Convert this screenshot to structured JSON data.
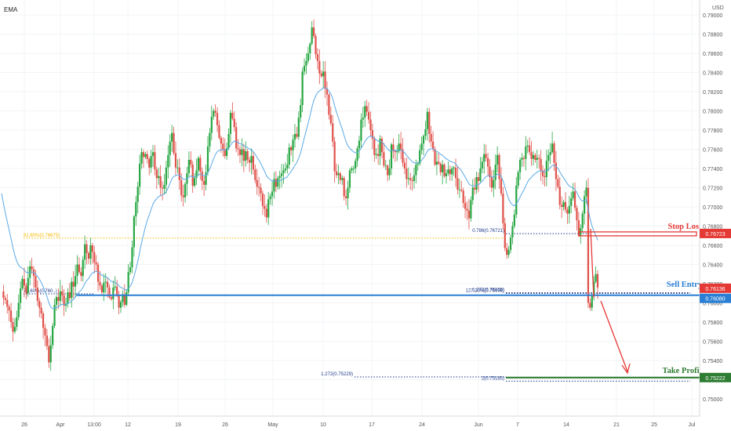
{
  "chart_data": {
    "type": "candlestick",
    "indicator_label": "EMA",
    "currency_label": "USD",
    "y_ticks": [
      "0.79000",
      "0.78800",
      "0.78600",
      "0.78400",
      "0.78200",
      "0.78000",
      "0.77800",
      "0.77600",
      "0.77400",
      "0.77200",
      "0.77000",
      "0.76800",
      "0.76600",
      "0.76400",
      "0.76200",
      "0.76000",
      "0.75800",
      "0.75600",
      "0.75400",
      "0.75200",
      "0.75000"
    ],
    "x_ticks": [
      "26",
      "Apr",
      "13:00",
      "12",
      "19",
      "26",
      "May",
      "10",
      "17",
      "24",
      "Jun",
      "7",
      "14",
      "21",
      "25",
      "Jul"
    ],
    "ylim": [
      0.7487,
      0.7911
    ],
    "levels": {
      "stop_loss": {
        "label": "Stop Loss",
        "value": 0.76723,
        "tag": "0.76723",
        "color": "#e53935"
      },
      "sell_entry": {
        "label": "Sell Entry",
        "values": [
          0.76136,
          0.7608
        ],
        "tags": [
          "0.76136",
          "0.76080"
        ],
        "color": "#2a7fd4"
      },
      "take_profit": {
        "label": "Take Profit",
        "value": 0.75222,
        "tag": "0.75222",
        "color": "#2e7d32"
      }
    },
    "fib_annotations": [
      {
        "text": "61.80%(0.76675)",
        "value": 0.76675
      },
      {
        "text": "0.786(0.76721)",
        "value": 0.76721
      },
      {
        "text": "78.60%(0.760..)",
        "value": 0.76094
      },
      {
        "text": "1.272(0.76106)",
        "value": 0.76106
      },
      {
        "text": "127.20%(0.76098)",
        "value": 0.76098
      },
      {
        "text": "1.272(0.75229)",
        "value": 0.75229
      },
      {
        "text": "2(0.75185)",
        "value": 0.75185
      }
    ],
    "candle_colors": {
      "up": "#26a641",
      "down": "#e0514a"
    },
    "ema_color": "#5aa9e6",
    "path_prices": [
      0.7612,
      0.7605,
      0.7603,
      0.7596,
      0.7592,
      0.758,
      0.757,
      0.7575,
      0.7585,
      0.76,
      0.7615,
      0.7625,
      0.7618,
      0.761,
      0.7626,
      0.7638,
      0.7635,
      0.7628,
      0.7616,
      0.7602,
      0.7595,
      0.7589,
      0.7574,
      0.7566,
      0.7555,
      0.7538,
      0.7556,
      0.7576,
      0.7598,
      0.7606,
      0.7602,
      0.7612,
      0.7608,
      0.7597,
      0.7599,
      0.7611,
      0.7605,
      0.7622,
      0.7617,
      0.7628,
      0.764,
      0.7632,
      0.7628,
      0.7645,
      0.7661,
      0.7652,
      0.7646,
      0.766,
      0.7653,
      0.7642,
      0.764,
      0.7622,
      0.7618,
      0.7611,
      0.7621,
      0.7622,
      0.7616,
      0.7606,
      0.7604,
      0.7616,
      0.7617,
      0.7608,
      0.7595,
      0.7601,
      0.7609,
      0.7598,
      0.7611,
      0.7632,
      0.7637,
      0.7658,
      0.769,
      0.7705,
      0.7721,
      0.7745,
      0.7757,
      0.7752,
      0.7755,
      0.775,
      0.7741,
      0.7753,
      0.7757,
      0.7739,
      0.773,
      0.7732,
      0.772,
      0.7719,
      0.7723,
      0.7741,
      0.7754,
      0.7768,
      0.7777,
      0.7756,
      0.7741,
      0.7741,
      0.7728,
      0.7712,
      0.771,
      0.7724,
      0.7735,
      0.7749,
      0.7744,
      0.7722,
      0.773,
      0.7738,
      0.7751,
      0.7737,
      0.7727,
      0.7723,
      0.7736,
      0.7763,
      0.7777,
      0.7794,
      0.78,
      0.7798,
      0.7785,
      0.7772,
      0.7766,
      0.776,
      0.7753,
      0.7761,
      0.7776,
      0.7798,
      0.7792,
      0.7783,
      0.7761,
      0.776,
      0.7754,
      0.776,
      0.7748,
      0.7758,
      0.7749,
      0.7746,
      0.7753,
      0.7739,
      0.7728,
      0.7721,
      0.772,
      0.7714,
      0.7701,
      0.7698,
      0.7689,
      0.7708,
      0.7711,
      0.7716,
      0.7729,
      0.7721,
      0.773,
      0.7732,
      0.7735,
      0.7738,
      0.774,
      0.7744,
      0.7762,
      0.7759,
      0.777,
      0.7776,
      0.7773,
      0.7793,
      0.7806,
      0.7841,
      0.7847,
      0.7852,
      0.786,
      0.787,
      0.7887,
      0.7878,
      0.7859,
      0.7852,
      0.7839,
      0.7836,
      0.7841,
      0.7823,
      0.7817,
      0.7796,
      0.7787,
      0.7768,
      0.7737,
      0.7733,
      0.7735,
      0.7728,
      0.773,
      0.7711,
      0.7709,
      0.772,
      0.7738,
      0.774,
      0.774,
      0.7748,
      0.7761,
      0.7769,
      0.7791,
      0.7793,
      0.7805,
      0.7799,
      0.7791,
      0.778,
      0.7771,
      0.7754,
      0.7755,
      0.7753,
      0.7771,
      0.7757,
      0.7743,
      0.7743,
      0.7733,
      0.774,
      0.7765,
      0.7758,
      0.7757,
      0.7758,
      0.7766,
      0.776,
      0.7746,
      0.774,
      0.7729,
      0.773,
      0.7728,
      0.7727,
      0.7733,
      0.7744,
      0.7745,
      0.7759,
      0.7766,
      0.7774,
      0.7781,
      0.7799,
      0.7776,
      0.7768,
      0.776,
      0.7744,
      0.7747,
      0.7745,
      0.7736,
      0.7744,
      0.7732,
      0.7735,
      0.7739,
      0.7734,
      0.774,
      0.7741,
      0.773,
      0.7718,
      0.7718,
      0.7717,
      0.7704,
      0.7698,
      0.7696,
      0.7688,
      0.7707,
      0.772,
      0.7718,
      0.7731,
      0.7727,
      0.774,
      0.7747,
      0.7755,
      0.7751,
      0.7742,
      0.7731,
      0.772,
      0.7728,
      0.7744,
      0.7754,
      0.7729,
      0.7714,
      0.7683,
      0.7657,
      0.765,
      0.7655,
      0.7668,
      0.768,
      0.7692,
      0.7722,
      0.7736,
      0.7749,
      0.7751,
      0.775,
      0.7763,
      0.7764,
      0.7757,
      0.775,
      0.7754,
      0.7749,
      0.7751,
      0.775,
      0.7738,
      0.7732,
      0.7731,
      0.7748,
      0.7754,
      0.7757,
      0.7766,
      0.7746,
      0.7729,
      0.7721,
      0.7702,
      0.77,
      0.7705,
      0.7697,
      0.7693,
      0.7701,
      0.7709,
      0.7716,
      0.7699,
      0.7686,
      0.767,
      0.7678,
      0.7693,
      0.7711,
      0.772,
      0.76,
      0.7595,
      0.7607,
      0.7622,
      0.763,
      0.7616
    ]
  },
  "annotation_arrow": {
    "color": "#e53935"
  }
}
